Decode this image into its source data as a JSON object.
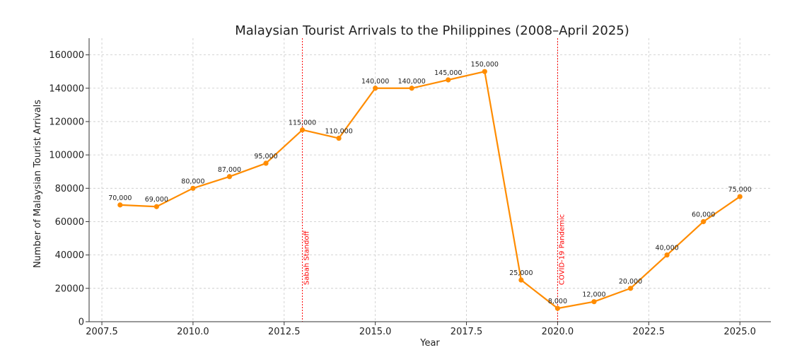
{
  "chart_data": {
    "type": "line",
    "title": "Malaysian Tourist Arrivals to the Philippines (2008–April 2025)",
    "xlabel": "Year",
    "ylabel": "Number of Malaysian Tourist Arrivals",
    "xlim": [
      2007.15,
      2025.85
    ],
    "ylim": [
      0,
      170000
    ],
    "xticks": [
      2007.5,
      2010.0,
      2012.5,
      2015.0,
      2017.5,
      2020.0,
      2022.5,
      2025.0
    ],
    "xtick_labels": [
      "2007.5",
      "2010.0",
      "2012.5",
      "2015.0",
      "2017.5",
      "2020.0",
      "2022.5",
      "2025.0"
    ],
    "yticks": [
      0,
      20000,
      40000,
      60000,
      80000,
      100000,
      120000,
      140000,
      160000
    ],
    "ytick_labels": [
      "0",
      "20000",
      "40000",
      "60000",
      "80000",
      "100000",
      "120000",
      "140000",
      "160000"
    ],
    "grid": true,
    "series": [
      {
        "color": "#ff8c00",
        "x": [
          2008,
          2009,
          2010,
          2011,
          2012,
          2013,
          2014,
          2015,
          2016,
          2017,
          2018,
          2019,
          2020,
          2021,
          2022,
          2023,
          2024,
          2025
        ],
        "y": [
          70000,
          69000,
          80000,
          87000,
          95000,
          115000,
          110000,
          140000,
          140000,
          145000,
          150000,
          25000,
          8000,
          12000,
          20000,
          40000,
          60000,
          75000
        ],
        "labels": [
          "70,000",
          "69,000",
          "80,000",
          "87,000",
          "95,000",
          "115,000",
          "110,000",
          "140,000",
          "140,000",
          "145,000",
          "150,000",
          "25,000",
          "8,000",
          "12,000",
          "20,000",
          "40,000",
          "60,000",
          "75,000"
        ]
      }
    ],
    "annotations": [
      {
        "x": 2013,
        "text": "Sabah Standoff",
        "color": "#ff0000"
      },
      {
        "x": 2020,
        "text": "COVID-19 Pandemic",
        "color": "#ff0000"
      }
    ]
  }
}
